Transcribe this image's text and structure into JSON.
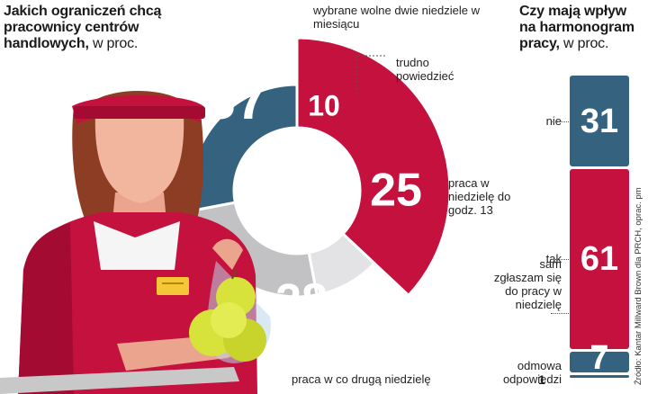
{
  "left": {
    "title": "Jakich ograniczeń chcą pracownicy centrów handlowych,",
    "unit": "w proc."
  },
  "right": {
    "title": "Czy mają wpływ na harmonogram pracy,",
    "unit": "w proc."
  },
  "source": "Źródło: Kantar Millward Brown dla PRCH, oprac. pm",
  "colors": {
    "red": "#c4113d",
    "blue": "#35627f",
    "light_gray": "#e3e3e5",
    "mid_gray": "#c2c2c4"
  },
  "chart_data": [
    {
      "type": "pie",
      "title": "Jakich ograniczeń chcą pracownicy centrów handlowych, w proc.",
      "slices": [
        {
          "label": "wybrane wolne dwie niedziele w miesiącu",
          "value": 37,
          "color": "#c4113d"
        },
        {
          "label": "trudno powiedzieć",
          "value": 10,
          "color": "#e3e3e5"
        },
        {
          "label": "praca w niedzielę do godz. 13",
          "value": 25,
          "color": "#c2c2c4"
        },
        {
          "label": "praca w co drugą niedzielę",
          "value": 28,
          "color": "#35627f"
        }
      ]
    },
    {
      "type": "bar",
      "title": "Czy mają wpływ na harmonogram pracy, w proc.",
      "categories": [
        "nie",
        "tak",
        "sam zgłaszam się do pracy w niedzielę",
        "odmowa odpowiedzi"
      ],
      "values": [
        31,
        61,
        7,
        1
      ],
      "colors": [
        "#35627f",
        "#c4113d",
        "#35627f",
        "#35627f"
      ]
    }
  ]
}
